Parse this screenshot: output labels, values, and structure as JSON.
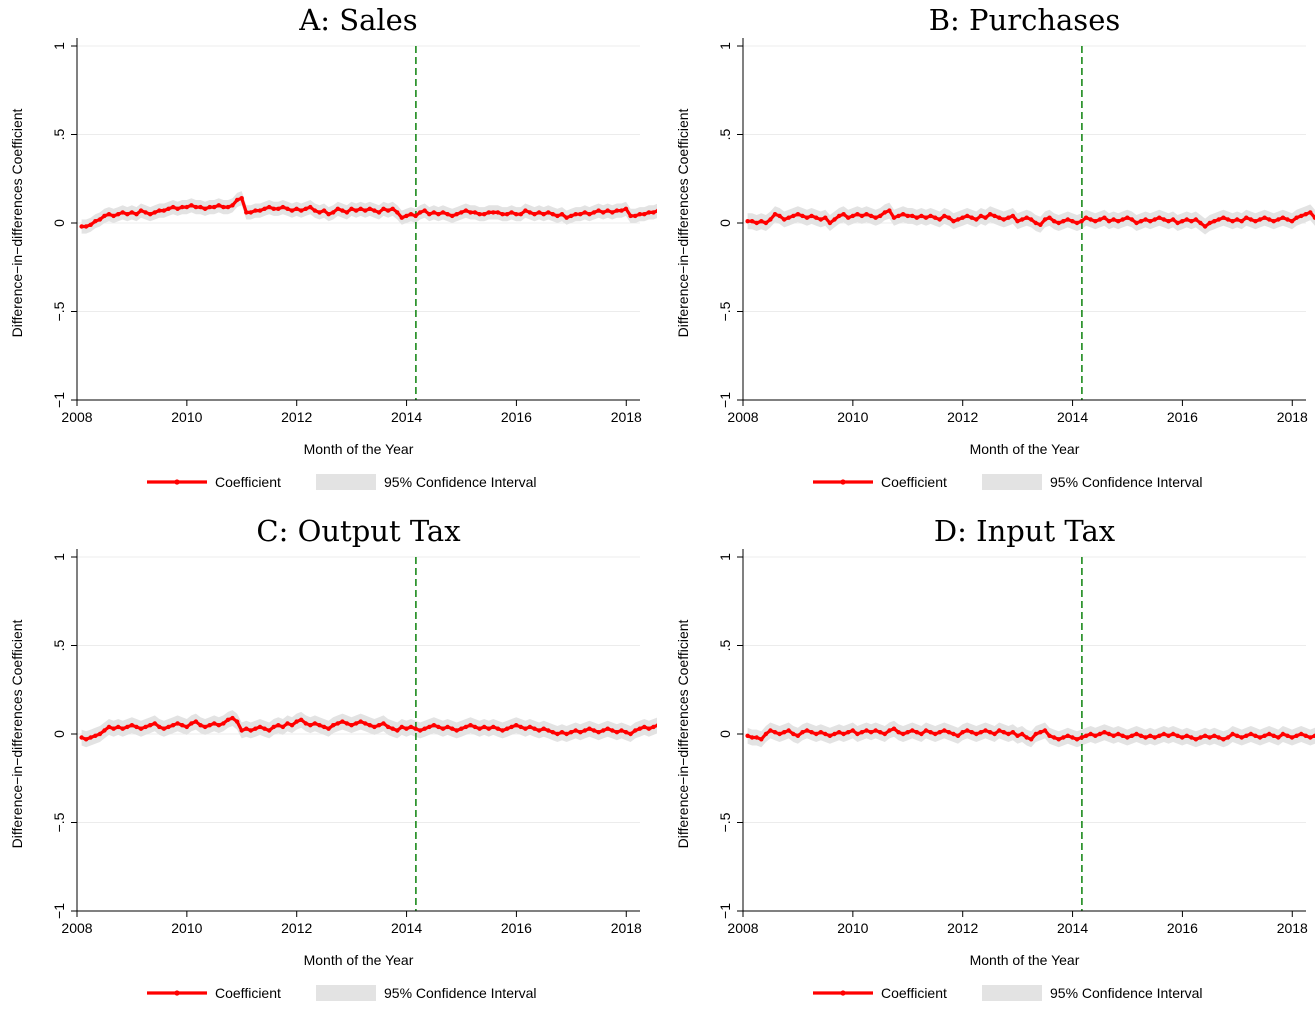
{
  "colors": {
    "coefficient": "#ff0000",
    "ci_fill": "#e3e3e3",
    "event_line": "#1a8a1a",
    "grid": "#ececec",
    "axis": "#000000"
  },
  "legend": {
    "coefficient_label": "Coefficient",
    "ci_label": "95% Confidence Interval"
  },
  "chart_data": [
    {
      "type": "line",
      "title": "A: Sales",
      "xlabel": "Month of the Year",
      "ylabel": "Difference−in−differences Coefficient",
      "x_ticks": [
        "2008",
        "2010",
        "2012",
        "2014",
        "2016",
        "2018"
      ],
      "y_ticks": [
        "−1",
        "−.5",
        "0",
        ".5",
        "1"
      ],
      "xlim": [
        2008,
        2018.25
      ],
      "ylim": [
        -1,
        1
      ],
      "event_line_x": 2014.17,
      "ci_halfwidth": 0.04,
      "series": [
        {
          "name": "Coefficient",
          "x_start": 2008.083,
          "x_step": 0.0833,
          "values": [
            -0.02,
            -0.02,
            -0.01,
            0.01,
            0.02,
            0.04,
            0.05,
            0.04,
            0.05,
            0.06,
            0.05,
            0.06,
            0.05,
            0.07,
            0.06,
            0.05,
            0.06,
            0.07,
            0.07,
            0.08,
            0.09,
            0.08,
            0.09,
            0.09,
            0.1,
            0.09,
            0.09,
            0.08,
            0.09,
            0.09,
            0.1,
            0.09,
            0.09,
            0.1,
            0.13,
            0.14,
            0.06,
            0.06,
            0.07,
            0.07,
            0.08,
            0.09,
            0.08,
            0.08,
            0.09,
            0.08,
            0.07,
            0.08,
            0.07,
            0.08,
            0.09,
            0.07,
            0.06,
            0.07,
            0.05,
            0.06,
            0.08,
            0.07,
            0.06,
            0.08,
            0.07,
            0.08,
            0.07,
            0.08,
            0.07,
            0.06,
            0.08,
            0.07,
            0.08,
            0.06,
            0.03,
            0.04,
            0.05,
            0.04,
            0.06,
            0.07,
            0.05,
            0.06,
            0.05,
            0.06,
            0.05,
            0.04,
            0.05,
            0.06,
            0.07,
            0.06,
            0.06,
            0.05,
            0.05,
            0.06,
            0.06,
            0.06,
            0.05,
            0.05,
            0.06,
            0.05,
            0.05,
            0.07,
            0.06,
            0.05,
            0.06,
            0.05,
            0.06,
            0.05,
            0.04,
            0.05,
            0.03,
            0.04,
            0.05,
            0.05,
            0.06,
            0.05,
            0.06,
            0.07,
            0.06,
            0.07,
            0.06,
            0.07,
            0.07,
            0.08,
            0.04,
            0.04,
            0.05,
            0.05,
            0.06,
            0.06,
            0.07,
            0.06,
            0.07,
            0.08,
            0.07,
            0.08,
            0.07,
            0.08,
            0.07,
            0.08,
            0.04,
            0.04,
            0.05,
            0.06,
            0.06,
            0.07,
            0.06,
            0.07,
            0.08,
            0.08,
            0.09,
            0.08,
            0.07,
            0.06,
            0.05,
            0.06,
            0.07,
            0.06,
            0.05,
            0.06,
            0.05,
            0.05,
            0.06,
            0.05,
            0.04,
            0.05,
            0.04,
            0.05,
            0.05,
            0.04,
            0.04,
            0.03,
            0.03,
            0.03,
            0.02,
            0.02,
            0.02
          ]
        }
      ]
    },
    {
      "type": "line",
      "title": "B: Purchases",
      "xlabel": "Month of the Year",
      "ylabel": "Difference−in−differences Coefficient",
      "x_ticks": [
        "2008",
        "2010",
        "2012",
        "2014",
        "2016",
        "2018"
      ],
      "y_ticks": [
        "−1",
        "−.5",
        "0",
        ".5",
        "1"
      ],
      "xlim": [
        2008,
        2018.25
      ],
      "ylim": [
        -1,
        1
      ],
      "event_line_x": 2014.17,
      "ci_halfwidth": 0.045,
      "series": [
        {
          "name": "Coefficient",
          "x_start": 2008.083,
          "x_step": 0.0833,
          "values": [
            0.01,
            0.01,
            0.0,
            0.01,
            0.0,
            0.02,
            0.05,
            0.04,
            0.02,
            0.03,
            0.04,
            0.05,
            0.04,
            0.03,
            0.04,
            0.03,
            0.02,
            0.03,
            0.0,
            0.02,
            0.04,
            0.05,
            0.03,
            0.04,
            0.05,
            0.04,
            0.05,
            0.04,
            0.03,
            0.04,
            0.06,
            0.07,
            0.03,
            0.04,
            0.05,
            0.04,
            0.04,
            0.03,
            0.04,
            0.03,
            0.04,
            0.03,
            0.02,
            0.04,
            0.03,
            0.01,
            0.02,
            0.03,
            0.04,
            0.03,
            0.02,
            0.04,
            0.03,
            0.05,
            0.04,
            0.03,
            0.02,
            0.03,
            0.04,
            0.01,
            0.02,
            0.03,
            0.02,
            0.0,
            -0.01,
            0.02,
            0.03,
            0.01,
            0.0,
            0.01,
            0.02,
            0.01,
            0.0,
            0.01,
            0.03,
            0.02,
            0.01,
            0.02,
            0.03,
            0.01,
            0.02,
            0.01,
            0.02,
            0.03,
            0.02,
            0.0,
            0.01,
            0.02,
            0.01,
            0.02,
            0.03,
            0.02,
            0.01,
            0.02,
            0.0,
            0.01,
            0.02,
            0.01,
            0.02,
            0.0,
            -0.02,
            0.0,
            0.01,
            0.02,
            0.03,
            0.02,
            0.01,
            0.02,
            0.01,
            0.03,
            0.02,
            0.01,
            0.02,
            0.03,
            0.02,
            0.01,
            0.02,
            0.03,
            0.02,
            0.01,
            0.03,
            0.04,
            0.05,
            0.06,
            0.03,
            0.02,
            0.03,
            0.02,
            0.03,
            0.04,
            0.03,
            0.04,
            0.05,
            0.06,
            0.04,
            0.02,
            0.01,
            0.02,
            0.03,
            0.02,
            0.03,
            0.04,
            0.02,
            0.03,
            0.02,
            0.03,
            0.04,
            0.05,
            0.06,
            0.04,
            0.03,
            0.02,
            0.01,
            0.03,
            0.02,
            0.03,
            0.02,
            0.03,
            0.02,
            0.01,
            0.02,
            0.03,
            0.02,
            0.01,
            0.02,
            0.01,
            0.01,
            0.02,
            0.02
          ]
        }
      ]
    },
    {
      "type": "line",
      "title": "C: Output Tax",
      "xlabel": "Month of the Year",
      "ylabel": "Difference−in−differences Coefficient",
      "x_ticks": [
        "2008",
        "2010",
        "2012",
        "2014",
        "2016",
        "2018"
      ],
      "y_ticks": [
        "−1",
        "−.5",
        "0",
        ".5",
        "1"
      ],
      "xlim": [
        2008,
        2018.25
      ],
      "ylim": [
        -1,
        1
      ],
      "event_line_x": 2014.17,
      "ci_halfwidth": 0.045,
      "series": [
        {
          "name": "Coefficient",
          "x_start": 2008.083,
          "x_step": 0.0833,
          "values": [
            -0.02,
            -0.03,
            -0.02,
            -0.01,
            0.0,
            0.02,
            0.04,
            0.03,
            0.04,
            0.03,
            0.04,
            0.05,
            0.04,
            0.03,
            0.04,
            0.05,
            0.06,
            0.04,
            0.03,
            0.04,
            0.05,
            0.06,
            0.05,
            0.04,
            0.06,
            0.07,
            0.05,
            0.04,
            0.05,
            0.06,
            0.05,
            0.06,
            0.08,
            0.09,
            0.07,
            0.02,
            0.03,
            0.02,
            0.03,
            0.04,
            0.03,
            0.02,
            0.04,
            0.05,
            0.04,
            0.06,
            0.05,
            0.07,
            0.08,
            0.06,
            0.05,
            0.06,
            0.05,
            0.04,
            0.03,
            0.05,
            0.06,
            0.07,
            0.06,
            0.05,
            0.06,
            0.07,
            0.06,
            0.05,
            0.04,
            0.05,
            0.06,
            0.04,
            0.03,
            0.02,
            0.04,
            0.03,
            0.04,
            0.03,
            0.02,
            0.03,
            0.04,
            0.05,
            0.04,
            0.03,
            0.04,
            0.03,
            0.02,
            0.03,
            0.04,
            0.05,
            0.04,
            0.03,
            0.04,
            0.03,
            0.04,
            0.03,
            0.02,
            0.03,
            0.04,
            0.05,
            0.04,
            0.03,
            0.04,
            0.03,
            0.02,
            0.03,
            0.02,
            0.01,
            0.0,
            0.01,
            0.0,
            0.01,
            0.02,
            0.01,
            0.02,
            0.03,
            0.02,
            0.01,
            0.02,
            0.03,
            0.02,
            0.01,
            0.02,
            0.01,
            0.0,
            0.02,
            0.03,
            0.04,
            0.03,
            0.04,
            0.05,
            0.04,
            0.03,
            0.02,
            0.03,
            0.04,
            0.03,
            0.02,
            0.04,
            0.03,
            0.04,
            0.05,
            0.04,
            0.03,
            0.04,
            0.05,
            0.04,
            0.05,
            0.06,
            0.07,
            0.05,
            0.04,
            0.03,
            0.04,
            0.05,
            0.04,
            0.03,
            0.04,
            0.05,
            0.04,
            0.05,
            0.04,
            0.05,
            0.04,
            0.03,
            0.04,
            0.03,
            0.03,
            0.02,
            0.01,
            0.02,
            0.02,
            0.02
          ]
        }
      ]
    },
    {
      "type": "line",
      "title": "D: Input Tax",
      "xlabel": "Month of the Year",
      "ylabel": "Difference−in−differences Coefficient",
      "x_ticks": [
        "2008",
        "2010",
        "2012",
        "2014",
        "2016",
        "2018"
      ],
      "y_ticks": [
        "−1",
        "−.5",
        "0",
        ".5",
        "1"
      ],
      "xlim": [
        2008,
        2018.25
      ],
      "ylim": [
        -1,
        1
      ],
      "event_line_x": 2014.17,
      "ci_halfwidth": 0.045,
      "series": [
        {
          "name": "Coefficient",
          "x_start": 2008.083,
          "x_step": 0.0833,
          "values": [
            -0.01,
            -0.02,
            -0.02,
            -0.03,
            0.0,
            0.02,
            0.01,
            0.0,
            0.01,
            0.02,
            0.0,
            -0.01,
            0.01,
            0.02,
            0.01,
            0.0,
            0.01,
            0.0,
            -0.01,
            0.0,
            0.01,
            0.0,
            0.01,
            0.02,
            0.0,
            0.01,
            0.02,
            0.01,
            0.02,
            0.01,
            0.0,
            0.02,
            0.03,
            0.01,
            0.0,
            0.01,
            0.02,
            0.01,
            0.0,
            0.02,
            0.01,
            0.0,
            0.01,
            0.02,
            0.01,
            0.0,
            -0.01,
            0.01,
            0.02,
            0.01,
            0.0,
            0.01,
            0.02,
            0.01,
            0.0,
            0.02,
            0.01,
            0.0,
            0.01,
            -0.01,
            0.0,
            -0.02,
            -0.03,
            0.0,
            0.01,
            0.02,
            -0.01,
            -0.02,
            -0.03,
            -0.02,
            -0.01,
            -0.02,
            -0.03,
            -0.02,
            -0.01,
            0.0,
            -0.01,
            0.0,
            0.01,
            0.0,
            -0.01,
            0.0,
            -0.01,
            -0.02,
            -0.01,
            0.0,
            -0.01,
            -0.02,
            -0.01,
            -0.02,
            -0.01,
            0.0,
            -0.01,
            0.0,
            -0.01,
            -0.02,
            -0.01,
            -0.02,
            -0.03,
            -0.02,
            -0.01,
            -0.02,
            -0.01,
            -0.02,
            -0.03,
            -0.02,
            0.0,
            -0.01,
            -0.02,
            -0.01,
            0.0,
            -0.01,
            -0.02,
            -0.01,
            0.0,
            -0.01,
            -0.02,
            0.0,
            -0.01,
            -0.02,
            -0.01,
            0.0,
            -0.01,
            -0.02,
            -0.01,
            -0.02,
            -0.01,
            0.0,
            0.01,
            -0.01,
            -0.02,
            -0.01,
            0.0,
            0.01,
            0.02,
            0.01,
            0.02,
            0.04,
            0.05,
            0.02,
            0.01,
            0.0,
            0.01,
            0.02,
            0.01,
            0.02,
            0.03,
            0.02,
            0.01,
            0.02,
            0.01,
            0.02,
            0.03,
            0.04,
            0.02,
            0.01,
            0.0,
            0.01,
            0.02,
            0.01,
            0.02,
            0.03,
            0.02,
            0.01,
            0.0,
            -0.01,
            0.0,
            0.01,
            0.0,
            -0.01,
            -0.01,
            0.0,
            0.0
          ]
        }
      ]
    }
  ]
}
